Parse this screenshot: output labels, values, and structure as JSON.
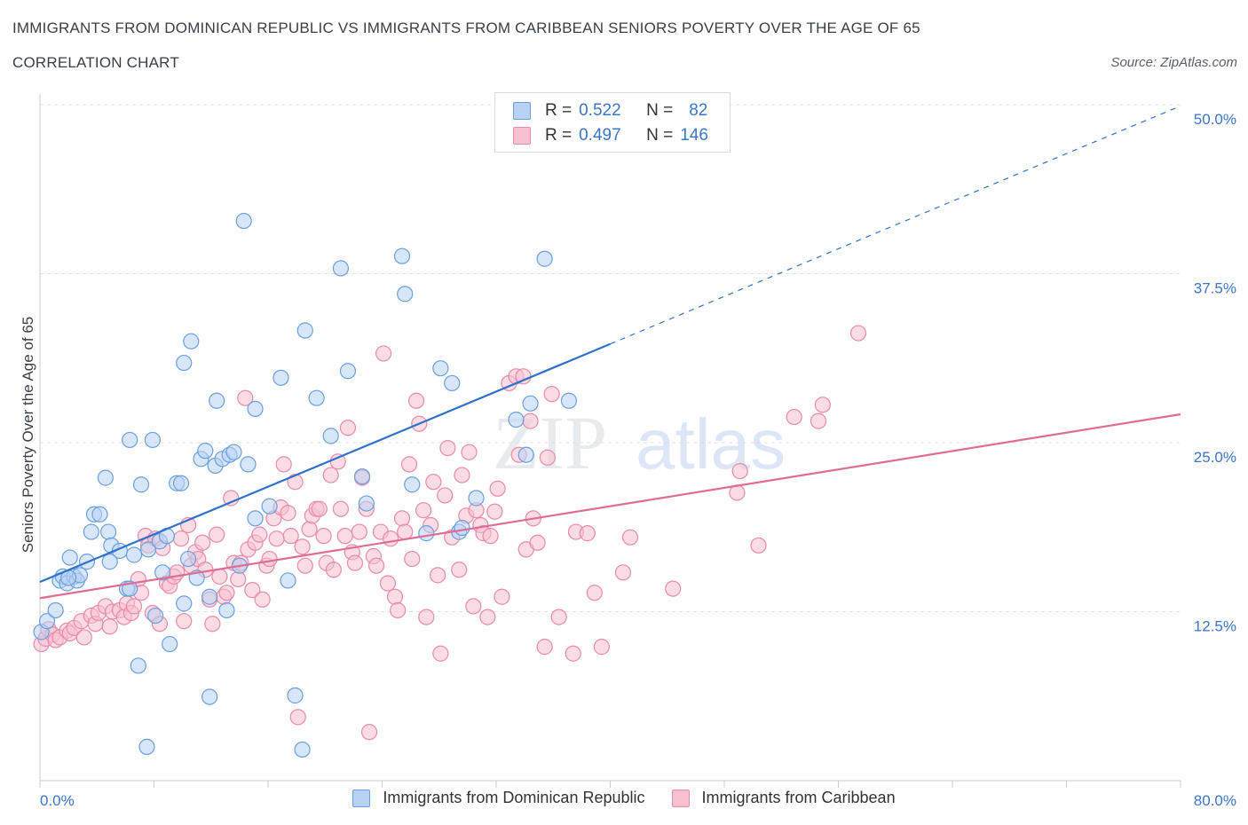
{
  "header": {
    "title": "IMMIGRANTS FROM DOMINICAN REPUBLIC VS IMMIGRANTS FROM CARIBBEAN SENIORS POVERTY OVER THE AGE OF 65",
    "subtitle": "CORRELATION CHART",
    "source": "Source: ZipAtlas.com"
  },
  "legend_top": {
    "rows": [
      {
        "r_label": "R =",
        "r_value": "0.522",
        "n_label": "N =",
        "n_value": "82"
      },
      {
        "r_label": "R =",
        "r_value": "0.497",
        "n_label": "N =",
        "n_value": "146"
      }
    ]
  },
  "colors": {
    "series_a_fill": "#b8d2f4",
    "series_a_stroke": "#6a9fe0",
    "series_a_line": "#2f72cc",
    "series_b_fill": "#f7c0d0",
    "series_b_stroke": "#e88aa8",
    "series_b_line": "#e06c96",
    "tick_label": "#3a76cc",
    "grid": "#dfe2e6"
  },
  "watermark": {
    "zip": "ZIP",
    "atlas": "atlas"
  },
  "chart_data": {
    "type": "scatter",
    "ylabel": "Seniors Poverty Over the Age of 65",
    "xlim": [
      0,
      80
    ],
    "ylim": [
      0,
      50
    ],
    "x_tick_labels": [
      {
        "value": 0,
        "label": "0.0%"
      },
      {
        "value": 80,
        "label": "80.0%"
      }
    ],
    "y_tick_labels": [
      {
        "value": 12.5,
        "label": "12.5%"
      },
      {
        "value": 25,
        "label": "25.0%"
      },
      {
        "value": 37.5,
        "label": "37.5%"
      },
      {
        "value": 50,
        "label": "50.0%"
      }
    ],
    "series": [
      {
        "name": "Immigrants from Dominican Republic",
        "R": 0.522,
        "N": 82,
        "trend": {
          "x0": 0,
          "y0": 14.7,
          "x1": 40,
          "y1": 32.3,
          "dash_to_x": 80,
          "dash_to_y": 49.9
        },
        "points": [
          [
            0.1,
            11.0
          ],
          [
            0.5,
            11.8
          ],
          [
            1.1,
            12.6
          ],
          [
            1.4,
            14.8
          ],
          [
            1.6,
            15.1
          ],
          [
            1.9,
            14.6
          ],
          [
            2.1,
            16.5
          ],
          [
            2.4,
            15.1
          ],
          [
            2.6,
            14.8
          ],
          [
            2.8,
            15.2
          ],
          [
            3.3,
            16.2
          ],
          [
            3.6,
            18.4
          ],
          [
            3.8,
            19.7
          ],
          [
            4.2,
            19.7
          ],
          [
            4.6,
            22.4
          ],
          [
            4.8,
            18.4
          ],
          [
            5.0,
            17.4
          ],
          [
            5.6,
            17.0
          ],
          [
            6.1,
            14.2
          ],
          [
            6.3,
            14.2
          ],
          [
            6.3,
            25.2
          ],
          [
            6.6,
            16.7
          ],
          [
            6.9,
            8.5
          ],
          [
            7.1,
            21.9
          ],
          [
            7.6,
            17.1
          ],
          [
            7.9,
            25.2
          ],
          [
            8.1,
            12.2
          ],
          [
            8.4,
            17.7
          ],
          [
            8.6,
            15.4
          ],
          [
            8.9,
            18.1
          ],
          [
            9.1,
            10.1
          ],
          [
            9.6,
            22.0
          ],
          [
            9.9,
            22.0
          ],
          [
            10.1,
            13.1
          ],
          [
            10.4,
            16.4
          ],
          [
            10.1,
            30.9
          ],
          [
            10.6,
            32.5
          ],
          [
            11.3,
            23.8
          ],
          [
            11.6,
            24.4
          ],
          [
            11.9,
            6.2
          ],
          [
            11.9,
            13.6
          ],
          [
            12.3,
            23.3
          ],
          [
            12.4,
            28.1
          ],
          [
            12.8,
            23.8
          ],
          [
            13.1,
            12.6
          ],
          [
            13.3,
            24.1
          ],
          [
            13.6,
            24.3
          ],
          [
            14.0,
            15.9
          ],
          [
            14.6,
            23.4
          ],
          [
            15.1,
            19.4
          ],
          [
            15.1,
            27.5
          ],
          [
            14.3,
            41.4
          ],
          [
            16.1,
            20.3
          ],
          [
            16.9,
            29.8
          ],
          [
            17.4,
            14.8
          ],
          [
            17.9,
            6.3
          ],
          [
            18.4,
            2.3
          ],
          [
            18.6,
            33.3
          ],
          [
            19.4,
            28.3
          ],
          [
            20.4,
            25.5
          ],
          [
            21.1,
            37.9
          ],
          [
            21.6,
            30.3
          ],
          [
            22.6,
            22.5
          ],
          [
            22.9,
            20.5
          ],
          [
            25.4,
            38.8
          ],
          [
            25.6,
            36.0
          ],
          [
            26.1,
            21.9
          ],
          [
            27.1,
            18.3
          ],
          [
            28.1,
            30.5
          ],
          [
            28.9,
            29.4
          ],
          [
            29.4,
            18.4
          ],
          [
            29.6,
            18.7
          ],
          [
            30.6,
            20.9
          ],
          [
            33.4,
            26.7
          ],
          [
            34.1,
            24.1
          ],
          [
            34.4,
            27.9
          ],
          [
            35.4,
            38.6
          ],
          [
            37.1,
            28.1
          ],
          [
            7.5,
            2.5
          ],
          [
            2.0,
            15.0
          ],
          [
            4.9,
            16.2
          ],
          [
            11.0,
            15.0
          ]
        ]
      },
      {
        "name": "Immigrants from Caribbean",
        "R": 0.497,
        "N": 146,
        "trend": {
          "x0": 0,
          "y0": 13.5,
          "x1": 80,
          "y1": 27.1
        },
        "points": [
          [
            0.1,
            10.1
          ],
          [
            0.4,
            10.5
          ],
          [
            0.6,
            11.2
          ],
          [
            0.9,
            10.8
          ],
          [
            1.1,
            10.4
          ],
          [
            1.4,
            10.6
          ],
          [
            1.9,
            11.1
          ],
          [
            2.1,
            10.9
          ],
          [
            2.4,
            11.3
          ],
          [
            2.9,
            11.8
          ],
          [
            3.1,
            10.6
          ],
          [
            3.6,
            12.2
          ],
          [
            3.9,
            11.6
          ],
          [
            4.1,
            12.4
          ],
          [
            4.6,
            12.9
          ],
          [
            4.9,
            11.4
          ],
          [
            5.1,
            12.5
          ],
          [
            5.6,
            12.6
          ],
          [
            5.9,
            12.1
          ],
          [
            6.1,
            13.1
          ],
          [
            6.4,
            12.4
          ],
          [
            6.6,
            12.9
          ],
          [
            6.9,
            14.9
          ],
          [
            7.1,
            13.9
          ],
          [
            7.4,
            18.1
          ],
          [
            7.6,
            17.4
          ],
          [
            7.9,
            12.4
          ],
          [
            8.1,
            17.9
          ],
          [
            8.4,
            11.6
          ],
          [
            8.6,
            17.2
          ],
          [
            8.9,
            14.6
          ],
          [
            9.1,
            14.4
          ],
          [
            9.4,
            15.1
          ],
          [
            9.6,
            15.4
          ],
          [
            9.9,
            17.9
          ],
          [
            10.1,
            11.8
          ],
          [
            10.4,
            18.9
          ],
          [
            10.6,
            15.9
          ],
          [
            10.9,
            16.9
          ],
          [
            11.1,
            16.4
          ],
          [
            11.4,
            17.6
          ],
          [
            11.6,
            15.6
          ],
          [
            11.9,
            13.4
          ],
          [
            12.1,
            11.6
          ],
          [
            12.4,
            18.2
          ],
          [
            12.6,
            15.1
          ],
          [
            12.9,
            13.6
          ],
          [
            13.1,
            13.9
          ],
          [
            13.4,
            20.9
          ],
          [
            13.6,
            16.1
          ],
          [
            13.9,
            14.9
          ],
          [
            14.1,
            16.1
          ],
          [
            14.4,
            28.3
          ],
          [
            14.6,
            17.1
          ],
          [
            14.9,
            14.1
          ],
          [
            15.1,
            17.6
          ],
          [
            15.4,
            18.2
          ],
          [
            15.6,
            13.4
          ],
          [
            15.9,
            15.9
          ],
          [
            16.1,
            16.4
          ],
          [
            16.4,
            19.4
          ],
          [
            16.6,
            17.9
          ],
          [
            16.9,
            20.2
          ],
          [
            17.1,
            23.4
          ],
          [
            17.4,
            19.8
          ],
          [
            17.6,
            18.1
          ],
          [
            17.9,
            22.1
          ],
          [
            18.1,
            4.7
          ],
          [
            18.4,
            17.3
          ],
          [
            18.6,
            15.9
          ],
          [
            18.9,
            18.6
          ],
          [
            19.1,
            19.6
          ],
          [
            19.4,
            20.1
          ],
          [
            19.6,
            20.1
          ],
          [
            19.9,
            18.1
          ],
          [
            20.1,
            16.1
          ],
          [
            20.4,
            22.6
          ],
          [
            20.6,
            15.6
          ],
          [
            20.9,
            23.6
          ],
          [
            21.1,
            20.1
          ],
          [
            21.4,
            18.1
          ],
          [
            21.6,
            26.1
          ],
          [
            21.9,
            16.9
          ],
          [
            22.1,
            16.1
          ],
          [
            22.4,
            18.4
          ],
          [
            22.6,
            22.4
          ],
          [
            22.9,
            20.1
          ],
          [
            23.1,
            3.6
          ],
          [
            23.4,
            16.6
          ],
          [
            23.6,
            15.9
          ],
          [
            23.9,
            18.4
          ],
          [
            24.1,
            31.6
          ],
          [
            24.4,
            14.6
          ],
          [
            24.6,
            17.9
          ],
          [
            24.9,
            13.6
          ],
          [
            25.1,
            12.6
          ],
          [
            25.4,
            19.4
          ],
          [
            25.6,
            18.4
          ],
          [
            25.9,
            23.4
          ],
          [
            26.1,
            16.4
          ],
          [
            26.4,
            28.1
          ],
          [
            26.6,
            26.4
          ],
          [
            26.9,
            20.0
          ],
          [
            27.1,
            12.1
          ],
          [
            27.4,
            18.9
          ],
          [
            27.6,
            22.1
          ],
          [
            27.9,
            15.2
          ],
          [
            28.1,
            9.4
          ],
          [
            28.4,
            21.1
          ],
          [
            28.6,
            24.6
          ],
          [
            28.9,
            18.0
          ],
          [
            29.4,
            15.6
          ],
          [
            29.6,
            22.6
          ],
          [
            29.9,
            19.6
          ],
          [
            30.1,
            24.3
          ],
          [
            30.4,
            12.9
          ],
          [
            30.6,
            20.0
          ],
          [
            30.9,
            18.9
          ],
          [
            31.1,
            18.3
          ],
          [
            31.4,
            12.1
          ],
          [
            31.6,
            18.1
          ],
          [
            31.9,
            19.9
          ],
          [
            32.1,
            21.6
          ],
          [
            32.4,
            13.6
          ],
          [
            32.9,
            29.4
          ],
          [
            33.4,
            29.9
          ],
          [
            33.6,
            24.1
          ],
          [
            33.9,
            29.9
          ],
          [
            34.1,
            17.1
          ],
          [
            34.4,
            26.6
          ],
          [
            34.6,
            19.4
          ],
          [
            34.9,
            17.6
          ],
          [
            35.4,
            9.9
          ],
          [
            35.6,
            23.9
          ],
          [
            35.9,
            28.6
          ],
          [
            36.4,
            12.1
          ],
          [
            37.4,
            9.4
          ],
          [
            37.6,
            18.4
          ],
          [
            38.4,
            18.3
          ],
          [
            38.9,
            13.9
          ],
          [
            39.4,
            9.9
          ],
          [
            40.9,
            15.4
          ],
          [
            41.4,
            18.0
          ],
          [
            44.4,
            14.2
          ],
          [
            48.9,
            21.3
          ],
          [
            49.1,
            22.9
          ],
          [
            50.4,
            17.4
          ],
          [
            52.9,
            26.9
          ],
          [
            54.6,
            26.6
          ],
          [
            54.9,
            27.8
          ],
          [
            57.4,
            33.1
          ]
        ]
      }
    ]
  }
}
